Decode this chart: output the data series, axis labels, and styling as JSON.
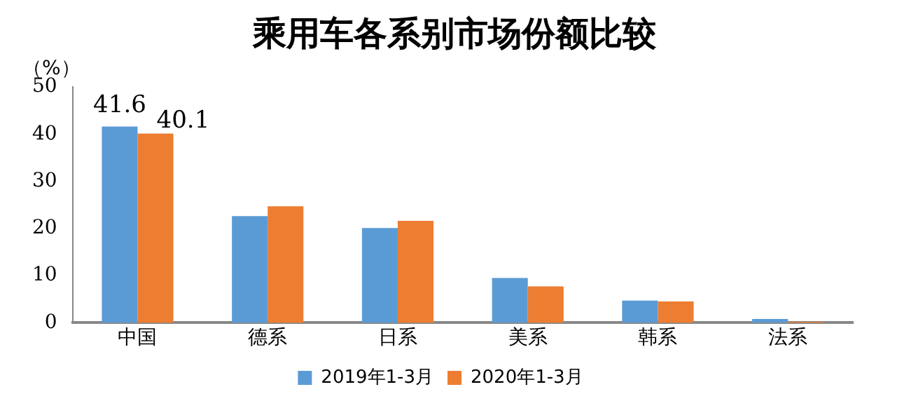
{
  "chart_data": {
    "type": "bar",
    "title": "乘用车各系别市场份额比较",
    "ylabel": "（%）",
    "categories": [
      "中国",
      "德系",
      "日系",
      "美系",
      "韩系",
      "法系"
    ],
    "series": [
      {
        "name": "2019年1-3月",
        "color": "#5b9bd5",
        "values": [
          41.6,
          22.6,
          20.1,
          9.5,
          4.7,
          0.8
        ],
        "value_labels": [
          "41.6",
          null,
          null,
          null,
          null,
          null
        ]
      },
      {
        "name": "2020年1-3月",
        "color": "#ed7d31",
        "values": [
          40.1,
          24.7,
          21.6,
          7.7,
          4.5,
          0.2
        ],
        "value_labels": [
          "40.1",
          null,
          null,
          null,
          null,
          null
        ]
      }
    ],
    "ylim": [
      0,
      50
    ],
    "yticks": [
      0,
      10,
      20,
      30,
      40,
      50
    ],
    "grid": false,
    "legend": "bottom"
  }
}
